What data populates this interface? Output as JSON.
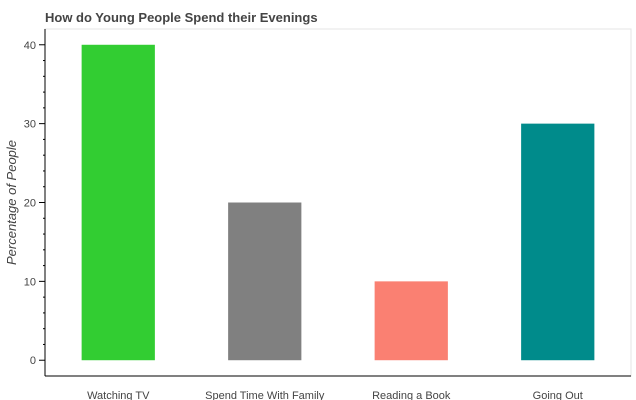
{
  "chart_data": {
    "type": "bar",
    "title": "How do Young People Spend their Evenings",
    "xlabel": "",
    "ylabel": "Percentage of People",
    "categories": [
      "Watching TV",
      "Spend Time With Family",
      "Reading a Book",
      "Going Out"
    ],
    "values": [
      40,
      20,
      10,
      30
    ],
    "colors": [
      "#32cd32",
      "#808080",
      "#fa8072",
      "#008b8b"
    ],
    "ylim": [
      -2,
      42
    ],
    "yticks": [
      0,
      10,
      20,
      30,
      40
    ],
    "grid": false,
    "legend": "none"
  }
}
